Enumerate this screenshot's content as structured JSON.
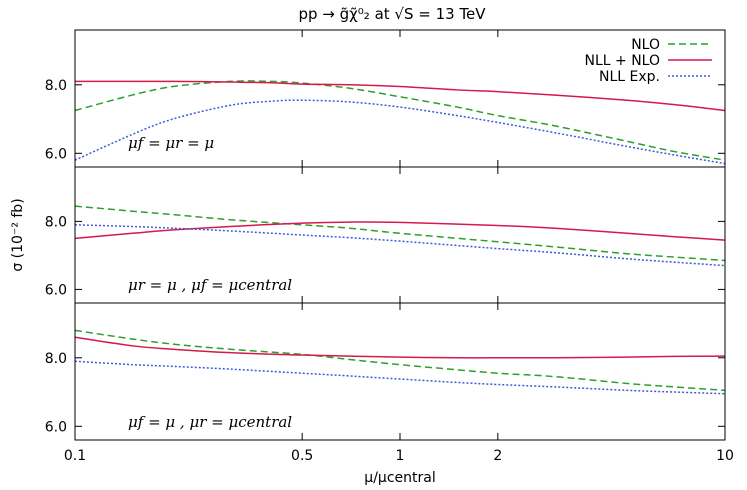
{
  "chart_data": {
    "type": "line",
    "title": "pp → g̃χ̃⁰₂ at √S = 13 TeV",
    "xlabel": "μ/μcentral",
    "ylabel": "σ (10⁻² fb)",
    "x_scale": "log",
    "xlim": [
      0.1,
      10
    ],
    "x_ticks": [
      {
        "value": 0.1,
        "label": "0.1"
      },
      {
        "value": 0.5,
        "label": "0.5"
      },
      {
        "value": 1,
        "label": "1"
      },
      {
        "value": 2,
        "label": "2"
      },
      {
        "value": 10,
        "label": "10"
      }
    ],
    "ylim": [
      5.6,
      9.6
    ],
    "y_ticks": [
      {
        "value": 6.0,
        "label": "6.0"
      },
      {
        "value": 8.0,
        "label": "8.0"
      }
    ],
    "legend_position": "top-right",
    "legend": [
      {
        "label": "NLO",
        "color": "#2ca02c",
        "dash": "dashed"
      },
      {
        "label": "NLL + NLO",
        "color": "#d6194b",
        "dash": "solid"
      },
      {
        "label": "NLL Exp.",
        "color": "#3b5bdb",
        "dash": "dotted"
      }
    ],
    "panels": [
      {
        "label": "μf = μr = μ",
        "x": [
          0.1,
          0.15,
          0.2,
          0.3,
          0.4,
          0.5,
          0.7,
          1,
          1.5,
          2,
          3,
          5,
          7,
          10
        ],
        "series": [
          {
            "name": "NLO",
            "values": [
              7.25,
              7.7,
              7.95,
              8.1,
              8.1,
              8.05,
              7.9,
              7.65,
              7.35,
              7.1,
              6.8,
              6.35,
              6.05,
              5.8
            ]
          },
          {
            "name": "NLL + NLO",
            "values": [
              8.1,
              8.1,
              8.1,
              8.08,
              8.06,
              8.02,
              8.0,
              7.95,
              7.85,
              7.8,
              7.7,
              7.55,
              7.42,
              7.25
            ]
          },
          {
            "name": "NLL Exp.",
            "values": [
              5.8,
              6.55,
              7.0,
              7.4,
              7.52,
              7.55,
              7.5,
              7.35,
              7.1,
              6.9,
              6.6,
              6.2,
              5.95,
              5.7
            ]
          }
        ]
      },
      {
        "label": "μr = μ , μf = μcentral",
        "x": [
          0.1,
          0.15,
          0.2,
          0.3,
          0.5,
          0.7,
          1,
          2,
          3,
          5,
          7,
          10
        ],
        "series": [
          {
            "name": "NLO",
            "values": [
              8.45,
              8.3,
              8.2,
              8.05,
              7.9,
              7.8,
              7.65,
              7.4,
              7.25,
              7.05,
              6.95,
              6.85
            ]
          },
          {
            "name": "NLL + NLO",
            "values": [
              7.5,
              7.65,
              7.75,
              7.85,
              7.95,
              7.98,
              7.97,
              7.88,
              7.8,
              7.65,
              7.55,
              7.45
            ]
          },
          {
            "name": "NLL Exp.",
            "values": [
              7.9,
              7.85,
              7.8,
              7.72,
              7.6,
              7.52,
              7.42,
              7.2,
              7.08,
              6.9,
              6.8,
              6.7
            ]
          }
        ]
      },
      {
        "label": "μf = μ , μr = μcentral",
        "x": [
          0.1,
          0.15,
          0.2,
          0.3,
          0.5,
          0.7,
          1,
          1.5,
          2,
          3,
          5,
          7,
          10
        ],
        "series": [
          {
            "name": "NLO",
            "values": [
              8.8,
              8.55,
              8.4,
              8.25,
              8.1,
              7.95,
              7.8,
              7.65,
              7.55,
              7.45,
              7.25,
              7.15,
              7.05
            ]
          },
          {
            "name": "NLL + NLO",
            "values": [
              8.6,
              8.35,
              8.25,
              8.15,
              8.08,
              8.05,
              8.02,
              8.0,
              8.0,
              8.0,
              8.02,
              8.04,
              8.05
            ]
          },
          {
            "name": "NLL Exp.",
            "values": [
              7.9,
              7.8,
              7.75,
              7.67,
              7.55,
              7.47,
              7.38,
              7.28,
              7.22,
              7.15,
              7.05,
              7.0,
              6.95
            ]
          }
        ]
      }
    ]
  }
}
